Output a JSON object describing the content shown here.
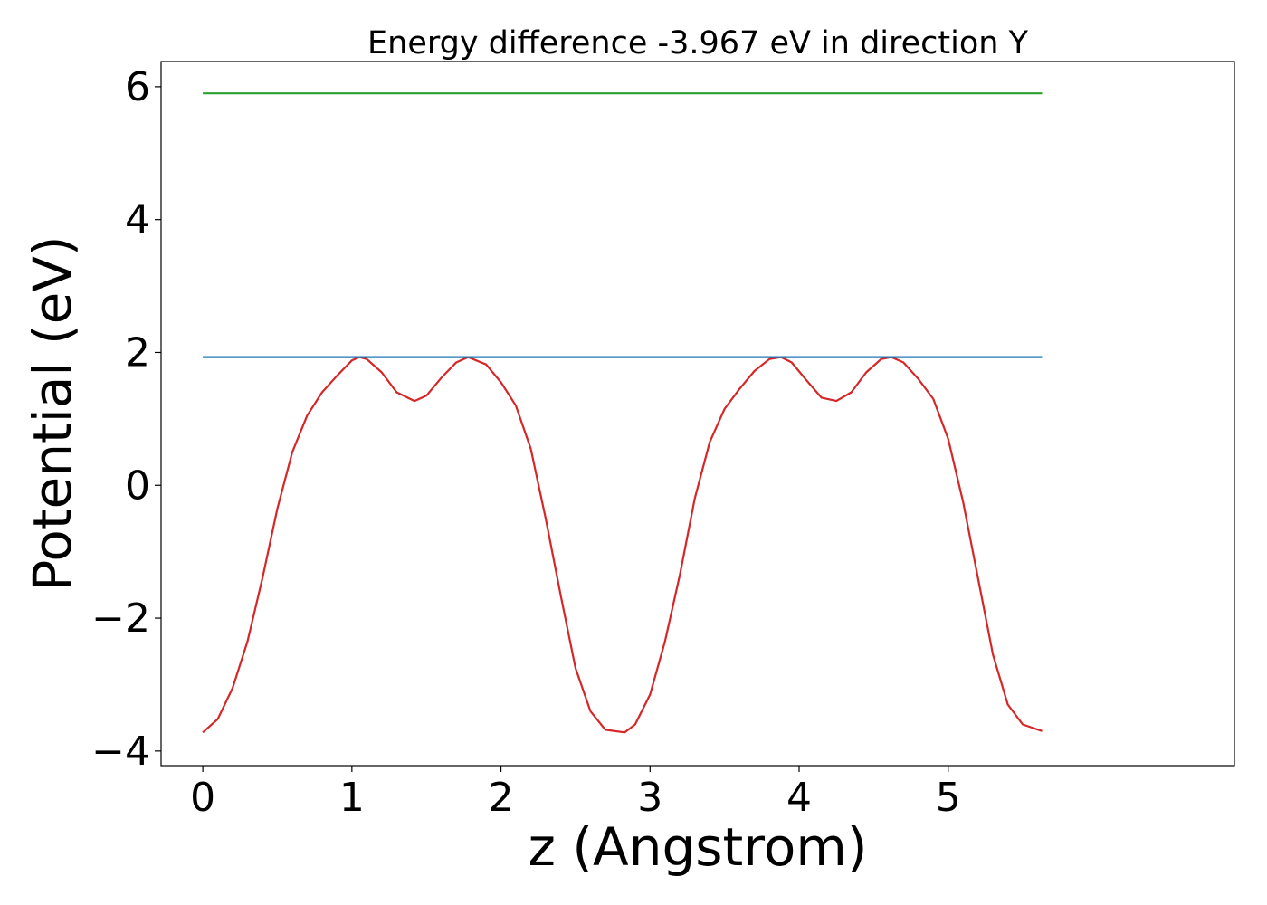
{
  "chart_data": {
    "type": "line",
    "title": "Energy difference -3.967 eV in direction Y",
    "xlabel": "z (Angstrom)",
    "ylabel": "Potential (eV)",
    "xlim": [
      -0.28,
      6.92
    ],
    "ylim": [
      -4.22,
      6.38
    ],
    "xticks": [
      0,
      1,
      2,
      3,
      4,
      5
    ],
    "xtick_labels": [
      "0",
      "1",
      "2",
      "3",
      "4",
      "5"
    ],
    "yticks": [
      -4,
      -2,
      0,
      2,
      4,
      6
    ],
    "ytick_labels": [
      "−4",
      "−2",
      "0",
      "2",
      "4",
      "6"
    ],
    "grid": false,
    "series": [
      {
        "color": "#d62728",
        "x": [
          0.0,
          0.1,
          0.2,
          0.3,
          0.4,
          0.5,
          0.6,
          0.7,
          0.8,
          0.9,
          1.0,
          1.05,
          1.1,
          1.2,
          1.3,
          1.42,
          1.5,
          1.6,
          1.7,
          1.78,
          1.9,
          2.0,
          2.1,
          2.2,
          2.3,
          2.4,
          2.5,
          2.6,
          2.7,
          2.83,
          2.9,
          3.0,
          3.1,
          3.2,
          3.3,
          3.4,
          3.5,
          3.6,
          3.7,
          3.8,
          3.88,
          3.95,
          4.05,
          4.15,
          4.25,
          4.35,
          4.45,
          4.55,
          4.62,
          4.7,
          4.8,
          4.9,
          5.0,
          5.1,
          5.2,
          5.3,
          5.4,
          5.5,
          5.63
        ],
        "y": [
          -3.72,
          -3.52,
          -3.05,
          -2.35,
          -1.4,
          -0.35,
          0.5,
          1.05,
          1.4,
          1.65,
          1.88,
          1.93,
          1.9,
          1.7,
          1.4,
          1.27,
          1.35,
          1.62,
          1.85,
          1.93,
          1.82,
          1.55,
          1.2,
          0.55,
          -0.5,
          -1.65,
          -2.75,
          -3.4,
          -3.68,
          -3.72,
          -3.6,
          -3.15,
          -2.35,
          -1.35,
          -0.2,
          0.65,
          1.15,
          1.45,
          1.72,
          1.9,
          1.93,
          1.85,
          1.58,
          1.32,
          1.27,
          1.4,
          1.7,
          1.9,
          1.93,
          1.85,
          1.6,
          1.3,
          0.7,
          -0.25,
          -1.4,
          -2.55,
          -3.3,
          -3.6,
          -3.7
        ]
      },
      {
        "color": "#1f77b4",
        "x": [
          0.0,
          5.63
        ],
        "y": [
          1.93,
          1.93
        ]
      },
      {
        "color": "#2ca02c",
        "x": [
          0.0,
          5.63
        ],
        "y": [
          5.9,
          5.9
        ]
      }
    ]
  }
}
